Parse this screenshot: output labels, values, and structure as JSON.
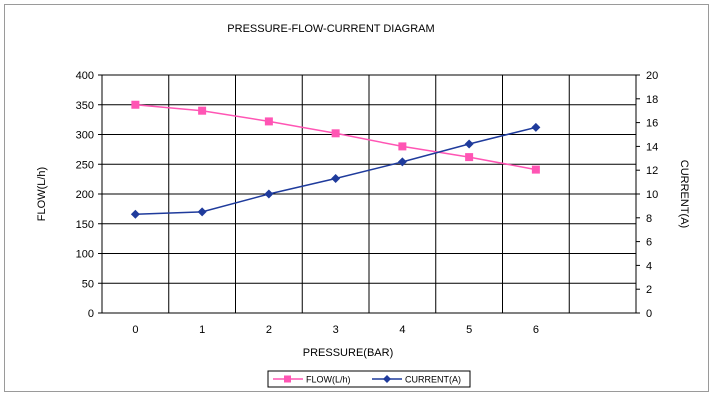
{
  "chart_data": {
    "type": "line",
    "title": "PRESSURE-FLOW-CURRENT DIAGRAM",
    "xlabel": "PRESSURE(BAR)",
    "ylabel": "FLOW(L/h)",
    "ylabel_right": "CURRENT(A)",
    "x": [
      0,
      1,
      2,
      3,
      4,
      5,
      6
    ],
    "x_ticks": [
      "0",
      "1",
      "2",
      "3",
      "4",
      "5",
      "6"
    ],
    "x_slots": 8,
    "ylim": [
      0,
      400
    ],
    "y_ticks": [
      "0",
      "50",
      "100",
      "150",
      "200",
      "250",
      "300",
      "350",
      "400"
    ],
    "ylim_right": [
      0,
      20
    ],
    "y_ticks_right": [
      "0",
      "2",
      "4",
      "6",
      "8",
      "10",
      "12",
      "14",
      "16",
      "18",
      "20"
    ],
    "grid": true,
    "legend_position": "bottom",
    "series": [
      {
        "name": "FLOW(L/h)",
        "axis": "left",
        "color": "#ff55b4",
        "marker": "square",
        "values": [
          350,
          340,
          322,
          302,
          280,
          262,
          241
        ]
      },
      {
        "name": "CURRENT(A)",
        "axis": "right",
        "color": "#1f3b9c",
        "marker": "diamond",
        "values": [
          8.3,
          8.5,
          10.0,
          11.3,
          12.7,
          14.2,
          15.6
        ]
      }
    ]
  }
}
